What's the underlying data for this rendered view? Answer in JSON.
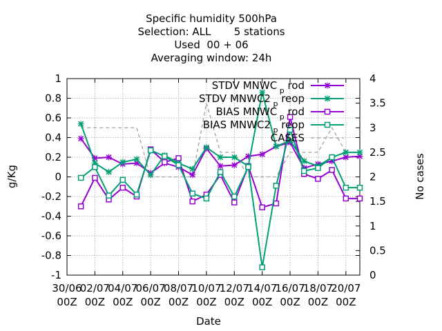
{
  "chart_data": {
    "type": "line",
    "title_lines": [
      "Specific humidity 500hPa",
      "Selection: ALL       5 stations",
      "Used  00 + 06",
      "Averaging window: 24h"
    ],
    "xlabel": "Date",
    "ylabel": "g/Kg",
    "y2label": "No cases",
    "ylim": [
      -1,
      1
    ],
    "y2lim": [
      0,
      4
    ],
    "xlim": [
      0,
      21
    ],
    "grid": true,
    "legend_position": "top-right",
    "xticks": [
      {
        "x": 0,
        "l1": "30/06",
        "l2": "00Z"
      },
      {
        "x": 2,
        "l1": "02/07",
        "l2": "00Z"
      },
      {
        "x": 4,
        "l1": "04/07",
        "l2": "00Z"
      },
      {
        "x": 6,
        "l1": "06/07",
        "l2": "00Z"
      },
      {
        "x": 8,
        "l1": "08/07",
        "l2": "00Z"
      },
      {
        "x": 10,
        "l1": "10/07",
        "l2": "00Z"
      },
      {
        "x": 12,
        "l1": "12/07",
        "l2": "00Z"
      },
      {
        "x": 14,
        "l1": "14/07",
        "l2": "00Z"
      },
      {
        "x": 16,
        "l1": "16/07",
        "l2": "00Z"
      },
      {
        "x": 18,
        "l1": "18/07",
        "l2": "00Z"
      },
      {
        "x": 20,
        "l1": "20/07",
        "l2": "00Z"
      }
    ],
    "yticks": [
      {
        "v": -1,
        "label": "-1"
      },
      {
        "v": -0.8,
        "label": "-0.8"
      },
      {
        "v": -0.6,
        "label": "-0.6"
      },
      {
        "v": -0.4,
        "label": "-0.4"
      },
      {
        "v": -0.2,
        "label": "-0.2"
      },
      {
        "v": 0,
        "label": "0"
      },
      {
        "v": 0.2,
        "label": "0.2"
      },
      {
        "v": 0.4,
        "label": "0.4"
      },
      {
        "v": 0.6,
        "label": "0.6"
      },
      {
        "v": 0.8,
        "label": "0.8"
      },
      {
        "v": 1,
        "label": "1"
      }
    ],
    "y2ticks": [
      {
        "v": 0,
        "label": "0"
      },
      {
        "v": 0.5,
        "label": "0.5"
      },
      {
        "v": 1,
        "label": "1"
      },
      {
        "v": 1.5,
        "label": "1.5"
      },
      {
        "v": 2,
        "label": "2"
      },
      {
        "v": 2.5,
        "label": "2.5"
      },
      {
        "v": 3,
        "label": "3"
      },
      {
        "v": 3.5,
        "label": "3.5"
      },
      {
        "v": 4,
        "label": "4"
      }
    ],
    "x": [
      1,
      2,
      3,
      4,
      5,
      6,
      7,
      8,
      9,
      10,
      11,
      12,
      13,
      14,
      15,
      16,
      17,
      18,
      19,
      20,
      21
    ],
    "series": [
      {
        "name": "STDV MNWC_p_rod",
        "legend_main": "STDV MNWC",
        "legend_sub": "p",
        "legend_tail": "rod",
        "color": "#9400d3",
        "marker": "x",
        "axis": "y1",
        "values": [
          0.39,
          0.19,
          0.2,
          0.13,
          0.14,
          0.04,
          0.14,
          0.1,
          0.02,
          0.29,
          0.11,
          0.12,
          0.21,
          0.23,
          0.31,
          0.35,
          0.09,
          0.13,
          0.16,
          0.2,
          0.21
        ]
      },
      {
        "name": "STDV MNWC2_p_reop",
        "legend_main": "STDV MNWC2",
        "legend_sub": "p",
        "legend_tail": "reop",
        "color": "#009e73",
        "marker": "x",
        "axis": "y1",
        "values": [
          0.54,
          0.14,
          0.05,
          0.15,
          0.18,
          0.02,
          0.22,
          0.14,
          0.08,
          0.3,
          0.2,
          0.2,
          0.11,
          0.86,
          0.31,
          0.37,
          0.16,
          0.11,
          0.2,
          0.25,
          0.25
        ]
      },
      {
        "name": "BIAS MNWC_p_rod",
        "legend_main": "BIAS MNWC",
        "legend_sub": "p",
        "legend_tail": "rod",
        "color": "#9400d3",
        "marker": "square",
        "axis": "y1",
        "values": [
          -0.3,
          -0.01,
          -0.23,
          -0.11,
          -0.2,
          0.28,
          0.15,
          0.19,
          -0.25,
          -0.18,
          0.02,
          -0.26,
          0.11,
          -0.31,
          -0.27,
          0.61,
          0.03,
          -0.02,
          0.07,
          -0.22,
          -0.22
        ]
      },
      {
        "name": "BIAS MNWC2_p_reop",
        "legend_main": "BIAS MNWC2",
        "legend_sub": "p",
        "legend_tail": "reop",
        "color": "#009e73",
        "marker": "square",
        "axis": "y1",
        "values": [
          -0.01,
          0.1,
          -0.19,
          -0.03,
          -0.18,
          0.27,
          0.21,
          0.12,
          -0.17,
          -0.22,
          0.05,
          -0.2,
          0.1,
          -0.92,
          -0.09,
          0.48,
          0.06,
          0.09,
          0.2,
          -0.11,
          -0.11
        ]
      },
      {
        "name": "CASES",
        "legend_main": "CASES",
        "legend_sub": "",
        "legend_tail": "",
        "color": "#a0a0a0",
        "marker": "none",
        "dashed": true,
        "axis": "y2",
        "values": [
          3,
          3,
          3,
          3,
          3,
          2,
          2,
          2,
          2,
          3.5,
          2.5,
          2.5,
          2,
          2,
          2,
          2.5,
          2.5,
          2.5,
          3,
          2.5,
          2.5
        ]
      }
    ]
  }
}
